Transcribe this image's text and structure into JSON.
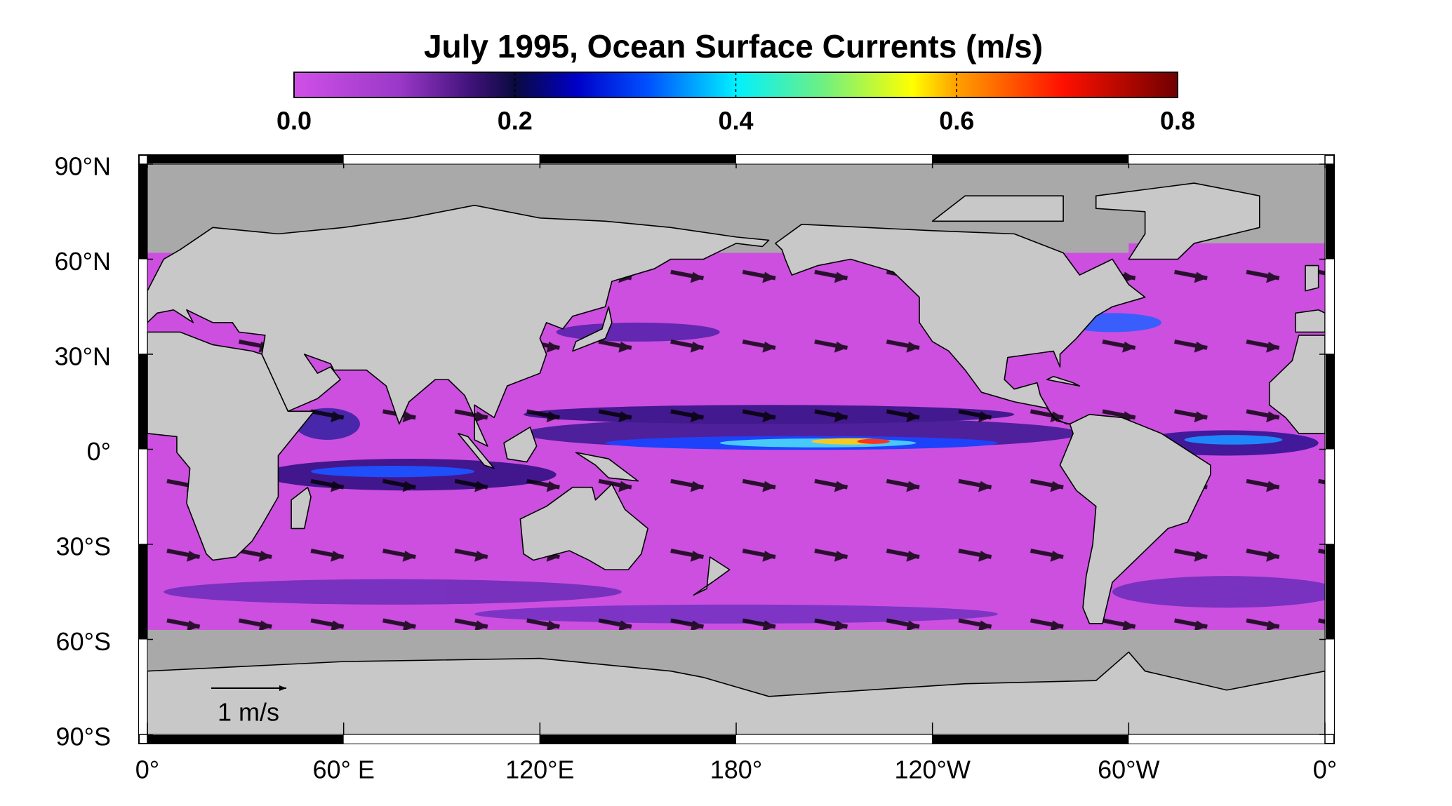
{
  "title": "July 1995, Ocean Surface Currents  (m/s)",
  "colorbar": {
    "range": [
      0,
      0.8
    ],
    "ticks": [
      {
        "value": 0,
        "label": "0.0"
      },
      0.2,
      0.4,
      0.6,
      {
        "value": 0.8,
        "label": "0.8"
      }
    ]
  },
  "map": {
    "lat_range": [
      -90,
      90
    ],
    "lon_range": [
      0,
      360
    ],
    "lat_ticks": [
      {
        "value": 90,
        "label": "90°N"
      },
      {
        "value": 60,
        "label": "60°N"
      },
      {
        "value": 30,
        "label": "30°N"
      },
      {
        "value": 0,
        "label": "0°"
      },
      {
        "value": -30,
        "label": "30°S"
      },
      {
        "value": -60,
        "label": "60°S"
      },
      {
        "value": -90,
        "label": "90°S"
      }
    ],
    "lon_ticks": [
      {
        "value": 0,
        "label": "0°"
      },
      {
        "value": 60,
        "label": "60° E"
      },
      {
        "value": 120,
        "label": "120°E"
      },
      {
        "value": 180,
        "label": "180°"
      },
      {
        "value": 240,
        "label": "120°W"
      },
      {
        "value": 300,
        "label": "60°W"
      },
      {
        "value": 360,
        "label": "0°"
      }
    ],
    "scale_label": "1 m/s"
  }
}
